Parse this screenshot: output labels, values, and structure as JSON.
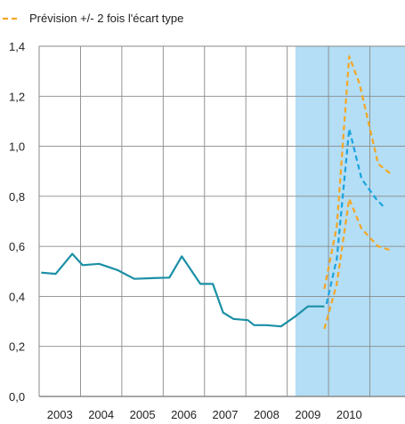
{
  "chart_data": {
    "type": "line",
    "title": "",
    "xlabel": "",
    "ylabel": "",
    "x_ticks": [
      "2003",
      "2004",
      "2005",
      "2006",
      "2007",
      "2008",
      "2009",
      "2010"
    ],
    "y_ticks": [
      "1,4",
      "1,2",
      "1,0",
      "0,8",
      "0,6",
      "0,4",
      "0,2",
      "0,0"
    ],
    "xlim": [
      2002.0,
      2010.85
    ],
    "ylim": [
      0,
      1.4
    ],
    "grid": true,
    "forecast_region": {
      "x_start": 2008.2,
      "color": "#b3def5"
    },
    "legend": {
      "placement": "top-left",
      "entries": [
        {
          "label": "Prévision +/- 2 fois l'écart type",
          "color": "#f5a623",
          "style": "dashed"
        }
      ]
    },
    "series": [
      {
        "color": "#1a8fa6",
        "style": "solid",
        "points": [
          [
            2002.05,
            0.495
          ],
          [
            2002.4,
            0.49
          ],
          [
            2002.8,
            0.57
          ],
          [
            2003.05,
            0.525
          ],
          [
            2003.45,
            0.53
          ],
          [
            2003.9,
            0.505
          ],
          [
            2004.3,
            0.47
          ],
          [
            2004.75,
            0.473
          ],
          [
            2005.15,
            0.475
          ],
          [
            2005.45,
            0.56
          ],
          [
            2005.9,
            0.45
          ],
          [
            2006.2,
            0.45
          ],
          [
            2006.45,
            0.335
          ],
          [
            2006.7,
            0.31
          ],
          [
            2007.05,
            0.305
          ],
          [
            2007.2,
            0.285
          ],
          [
            2007.5,
            0.285
          ],
          [
            2007.85,
            0.28
          ],
          [
            2008.2,
            0.32
          ],
          [
            2008.5,
            0.36
          ],
          [
            2008.9,
            0.36
          ]
        ]
      },
      {
        "color": "#1aa3e0",
        "style": "dashed",
        "points": [
          [
            2008.95,
            0.37
          ],
          [
            2009.2,
            0.55
          ],
          [
            2009.5,
            1.07
          ],
          [
            2009.8,
            0.87
          ],
          [
            2010.15,
            0.79
          ],
          [
            2010.35,
            0.755
          ]
        ]
      },
      {
        "color": "#f5a623",
        "style": "dashed",
        "points": [
          [
            2008.9,
            0.27
          ],
          [
            2009.2,
            0.45
          ],
          [
            2009.5,
            0.79
          ],
          [
            2009.8,
            0.67
          ],
          [
            2010.2,
            0.6
          ],
          [
            2010.5,
            0.585
          ]
        ]
      },
      {
        "color": "#f5a623",
        "style": "dashed",
        "points": [
          [
            2008.9,
            0.43
          ],
          [
            2009.2,
            0.68
          ],
          [
            2009.5,
            1.36
          ],
          [
            2009.75,
            1.25
          ],
          [
            2010.2,
            0.93
          ],
          [
            2010.5,
            0.89
          ]
        ]
      }
    ]
  }
}
